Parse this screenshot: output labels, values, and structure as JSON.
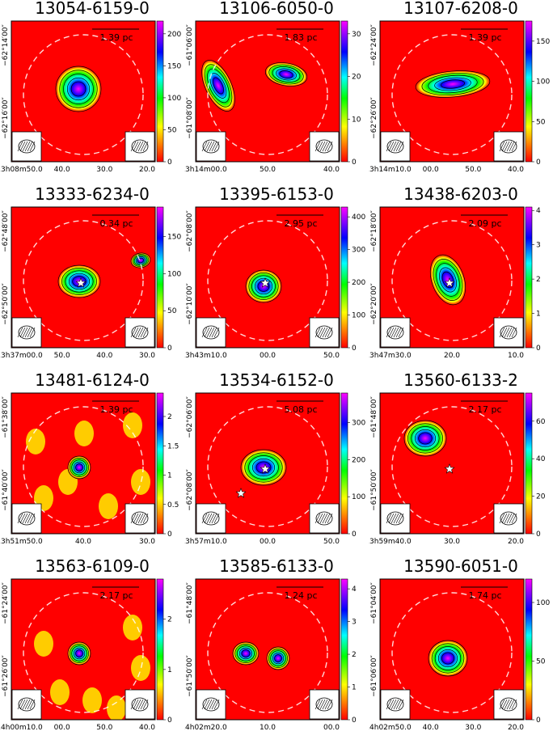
{
  "figure": {
    "panels": [
      {
        "title": "13054-6159-0",
        "scale": "1.39 pc",
        "cbar": {
          "ticks": [
            0,
            50,
            100,
            150,
            200
          ],
          "max": 220
        },
        "yticks": [
          "−62°14′00″",
          "−62°16′00″"
        ],
        "xticks": [
          "13h08m50.0",
          "40.0",
          "30.0",
          "20.0"
        ],
        "stars": 0
      },
      {
        "title": "13106-6050-0",
        "scale": "1.83 pc",
        "cbar": {
          "ticks": [
            0,
            10,
            20,
            30
          ],
          "max": 33
        },
        "yticks": [
          "−61°06′00″",
          "−61°08′00″"
        ],
        "xticks": [
          "13h14m00.0",
          "50.0",
          "40.0"
        ],
        "stars": 0
      },
      {
        "title": "13107-6208-0",
        "scale": "1.39 pc",
        "cbar": {
          "ticks": [
            0,
            50,
            100,
            150
          ],
          "max": 175
        },
        "yticks": [
          "−62°24′00″",
          "−62°26′00″"
        ],
        "xticks": [
          "13h14m10.0",
          "00.0",
          "50.0",
          "40.0"
        ],
        "stars": 0
      },
      {
        "title": "13333-6234-0",
        "scale": "0.34 pc",
        "cbar": {
          "ticks": [
            0,
            50,
            100,
            150
          ],
          "max": 190
        },
        "yticks": [
          "−62°48′00″",
          "−62°50′00″"
        ],
        "xticks": [
          "13h37m00.0",
          "50.0",
          "40.0",
          "30.0"
        ],
        "stars": 1
      },
      {
        "title": "13395-6153-0",
        "scale": "2.95 pc",
        "cbar": {
          "ticks": [
            0,
            100,
            200,
            300,
            400
          ],
          "max": 430
        },
        "yticks": [
          "−62°08′00″",
          "−62°10′00″"
        ],
        "xticks": [
          "13h43m10.0",
          "00.0",
          "50.0"
        ],
        "stars": 1
      },
      {
        "title": "13438-6203-0",
        "scale": "2.09 pc",
        "cbar": {
          "ticks": [
            0,
            1,
            2,
            3,
            4
          ],
          "max": 4.1
        },
        "yticks": [
          "−62°18′00″",
          "−62°20′00″"
        ],
        "xticks": [
          "13h47m30.0",
          "20.0",
          "10.0"
        ],
        "stars": 1
      },
      {
        "title": "13481-6124-0",
        "scale": "1.39 pc",
        "cbar": {
          "ticks": [
            0,
            0.5,
            1,
            1.5,
            2
          ],
          "max": 2.4
        },
        "yticks": [
          "−61°38′00″",
          "−61°40′00″"
        ],
        "xticks": [
          "13h51m50.0",
          "40.0",
          "30.0"
        ],
        "stars": 0
      },
      {
        "title": "13534-6152-0",
        "scale": "5.08 pc",
        "cbar": {
          "ticks": [
            0,
            100,
            200,
            300
          ],
          "max": 380
        },
        "yticks": [
          "−62°06′00″",
          "−62°08′00″"
        ],
        "xticks": [
          "13h57m10.0",
          "00.0",
          "50.0"
        ],
        "stars": 2
      },
      {
        "title": "13560-6133-2",
        "scale": "2.17 pc",
        "cbar": {
          "ticks": [
            0,
            20,
            40,
            60
          ],
          "max": 75
        },
        "yticks": [
          "−61°48′00″",
          "−61°50′00″"
        ],
        "xticks": [
          "13h59m40.0",
          "30.0",
          "20.0"
        ],
        "stars": 1
      },
      {
        "title": "13563-6109-0",
        "scale": "2.17 pc",
        "cbar": {
          "ticks": [
            0,
            1,
            2
          ],
          "max": 2.8
        },
        "yticks": [
          "−61°24′00″",
          "−61°26′00″"
        ],
        "xticks": [
          "14h00m10.0",
          "00.0",
          "50.0",
          "40.0"
        ],
        "stars": 0
      },
      {
        "title": "13585-6133-0",
        "scale": "1.24 pc",
        "cbar": {
          "ticks": [
            0,
            1,
            2,
            3,
            4
          ],
          "max": 4.3
        },
        "yticks": [
          "−61°48′00″",
          "−61°50′00″"
        ],
        "xticks": [
          "14h02m20.0",
          "10.0",
          "00.0"
        ],
        "stars": 0
      },
      {
        "title": "13590-6051-0",
        "scale": "1.74 pc",
        "cbar": {
          "ticks": [
            0,
            50,
            100
          ],
          "max": 120
        },
        "yticks": [
          "−61°04′00″",
          "−61°06′00″"
        ],
        "xticks": [
          "14h02m50.0",
          "40.0",
          "30.0",
          "20.0"
        ],
        "stars": 0
      }
    ]
  }
}
